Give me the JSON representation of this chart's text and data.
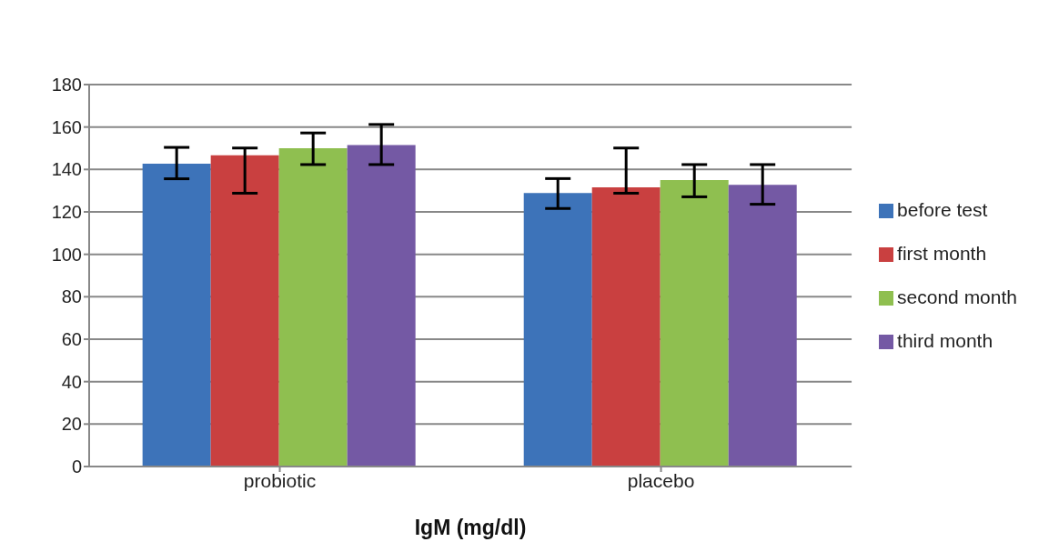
{
  "chart_data": {
    "type": "bar",
    "xlabel": "IgM (mg/dl)",
    "categories": [
      "probiotic",
      "placebo"
    ],
    "series": [
      {
        "name": "before test",
        "color": "#3d73b9",
        "values": [
          142.7,
          128.9
        ],
        "errors": [
          [
            135.6,
            150.4
          ],
          [
            121.6,
            135.7
          ]
        ]
      },
      {
        "name": "first month",
        "color": "#c94040",
        "values": [
          146.7,
          131.6
        ],
        "errors": [
          [
            128.8,
            150.1
          ],
          [
            128.8,
            150.1
          ]
        ]
      },
      {
        "name": "second month",
        "color": "#8fbf50",
        "values": [
          150,
          135
        ],
        "errors": [
          [
            142.3,
            157.2
          ],
          [
            127.1,
            142.3
          ]
        ]
      },
      {
        "name": "third month",
        "color": "#7459a4",
        "values": [
          151.5,
          132.7
        ],
        "errors": [
          [
            142.3,
            161.2
          ],
          [
            123.6,
            142.3
          ]
        ]
      }
    ],
    "ylim": [
      0,
      180
    ],
    "yticks": [
      0,
      20,
      40,
      60,
      80,
      100,
      120,
      140,
      160,
      180
    ],
    "grid": "y",
    "legend": "right"
  }
}
